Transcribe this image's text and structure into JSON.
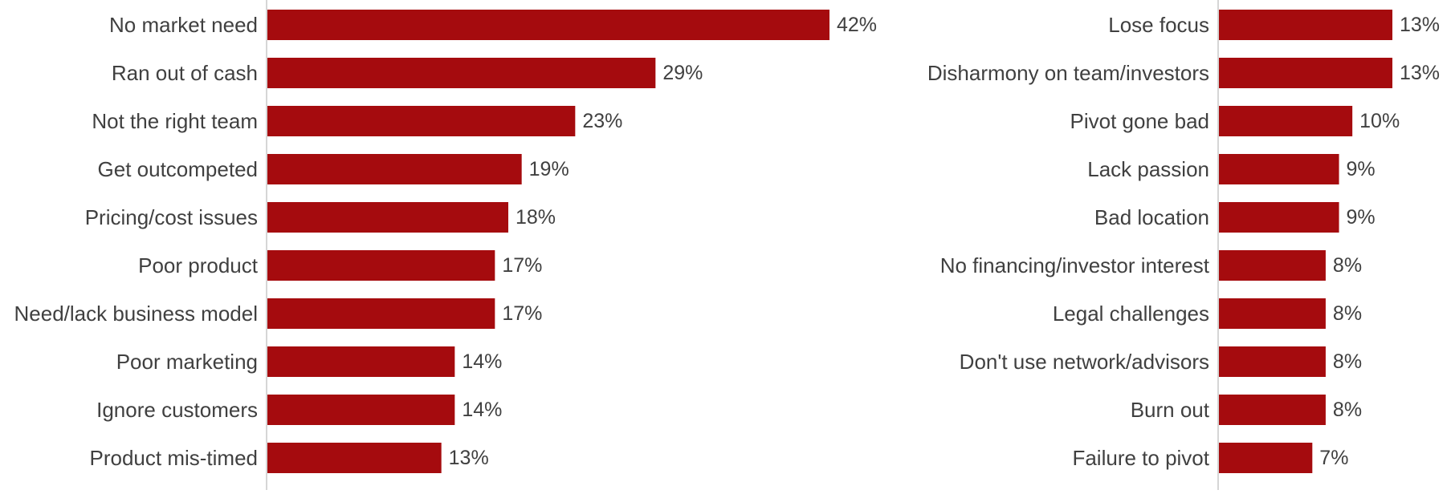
{
  "colors": {
    "bar": "#a50b0e",
    "axis": "#c8c8c8",
    "text": "#404040",
    "background": "#ffffff"
  },
  "chart_data": [
    {
      "type": "bar",
      "orientation": "horizontal",
      "categories": [
        "No market need",
        "Ran out of cash",
        "Not the right team",
        "Get outcompeted",
        "Pricing/cost issues",
        "Poor product",
        "Need/lack business model",
        "Poor marketing",
        "Ignore customers",
        "Product mis-timed"
      ],
      "values": [
        42,
        29,
        23,
        19,
        18,
        17,
        17,
        14,
        14,
        13
      ],
      "value_labels": [
        "42%",
        "29%",
        "23%",
        "19%",
        "18%",
        "17%",
        "17%",
        "14%",
        "14%",
        "13%"
      ],
      "unit": "%",
      "xlim": [
        0,
        42
      ],
      "grid": false,
      "legend": "none"
    },
    {
      "type": "bar",
      "orientation": "horizontal",
      "categories": [
        "Lose focus",
        "Disharmony on team/investors",
        "Pivot gone bad",
        "Lack passion",
        "Bad location",
        "No financing/investor interest",
        "Legal challenges",
        "Don't use network/advisors",
        "Burn out",
        "Failure to pivot"
      ],
      "values": [
        13,
        13,
        10,
        9,
        9,
        8,
        8,
        8,
        8,
        7
      ],
      "value_labels": [
        "13%",
        "13%",
        "10%",
        "9%",
        "9%",
        "8%",
        "8%",
        "8%",
        "8%",
        "7%"
      ],
      "unit": "%",
      "xlim": [
        0,
        13
      ],
      "grid": false,
      "legend": "none"
    }
  ]
}
